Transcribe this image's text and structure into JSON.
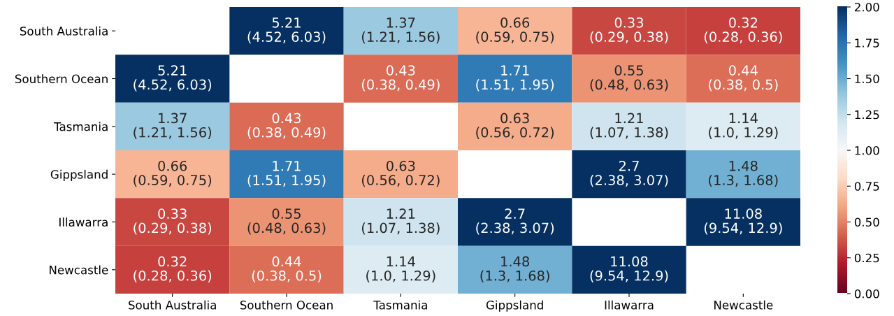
{
  "chart_data": {
    "type": "heatmap",
    "categories": [
      "South Australia",
      "Southern Ocean",
      "Tasmania",
      "Gippsland",
      "Illawarra",
      "Newcastle"
    ],
    "y_categories": [
      "South Australia",
      "Southern Ocean",
      "Tasmania",
      "Gippsland",
      "Illawarra",
      "Newcastle"
    ],
    "cells": [
      [
        null,
        5.21,
        1.37,
        0.66,
        0.33,
        0.32
      ],
      [
        5.21,
        null,
        0.43,
        1.71,
        0.55,
        0.44
      ],
      [
        1.37,
        0.43,
        null,
        0.63,
        1.21,
        1.14
      ],
      [
        0.66,
        1.71,
        0.63,
        null,
        2.7,
        1.48
      ],
      [
        0.33,
        0.55,
        1.21,
        2.7,
        null,
        11.08
      ],
      [
        0.32,
        0.44,
        1.14,
        1.48,
        11.08,
        null
      ]
    ],
    "cell_labels": [
      [
        null,
        "5.21\n(4.52, 6.03)",
        "1.37\n(1.21, 1.56)",
        "0.66\n(0.59, 0.75)",
        "0.33\n(0.29, 0.38)",
        "0.32\n(0.28, 0.36)"
      ],
      [
        "5.21\n(4.52, 6.03)",
        null,
        "0.43\n(0.38, 0.49)",
        "1.71\n(1.51, 1.95)",
        "0.55\n(0.48, 0.63)",
        "0.44\n(0.38, 0.5)"
      ],
      [
        "1.37\n(1.21, 1.56)",
        "0.43\n(0.38, 0.49)",
        null,
        "0.63\n(0.56, 0.72)",
        "1.21\n(1.07, 1.38)",
        "1.14\n(1.0, 1.29)"
      ],
      [
        "0.66\n(0.59, 0.75)",
        "1.71\n(1.51, 1.95)",
        "0.63\n(0.56, 0.72)",
        null,
        "2.7\n(2.38, 3.07)",
        "1.48\n(1.3, 1.68)"
      ],
      [
        "0.33\n(0.29, 0.38)",
        "0.55\n(0.48, 0.63)",
        "1.21\n(1.07, 1.38)",
        "2.7\n(2.38, 3.07)",
        null,
        "11.08\n(9.54, 12.9)"
      ],
      [
        "0.32\n(0.28, 0.36)",
        "0.44\n(0.38, 0.5)",
        "1.14\n(1.0, 1.29)",
        "1.48\n(1.3, 1.68)",
        "11.08\n(9.54, 12.9)",
        null
      ]
    ],
    "clim": [
      0,
      2
    ],
    "cticks": [
      {
        "value": 0,
        "label": "0.00"
      },
      {
        "value": 0.25,
        "label": "0.25"
      },
      {
        "value": 0.5,
        "label": "0.50"
      },
      {
        "value": 0.75,
        "label": "0.75"
      },
      {
        "value": 1,
        "label": "1.00"
      },
      {
        "value": 1.25,
        "label": "1.25"
      },
      {
        "value": 1.5,
        "label": "1.50"
      },
      {
        "value": 1.75,
        "label": "1.75"
      },
      {
        "value": 2,
        "label": "2.00"
      }
    ]
  }
}
